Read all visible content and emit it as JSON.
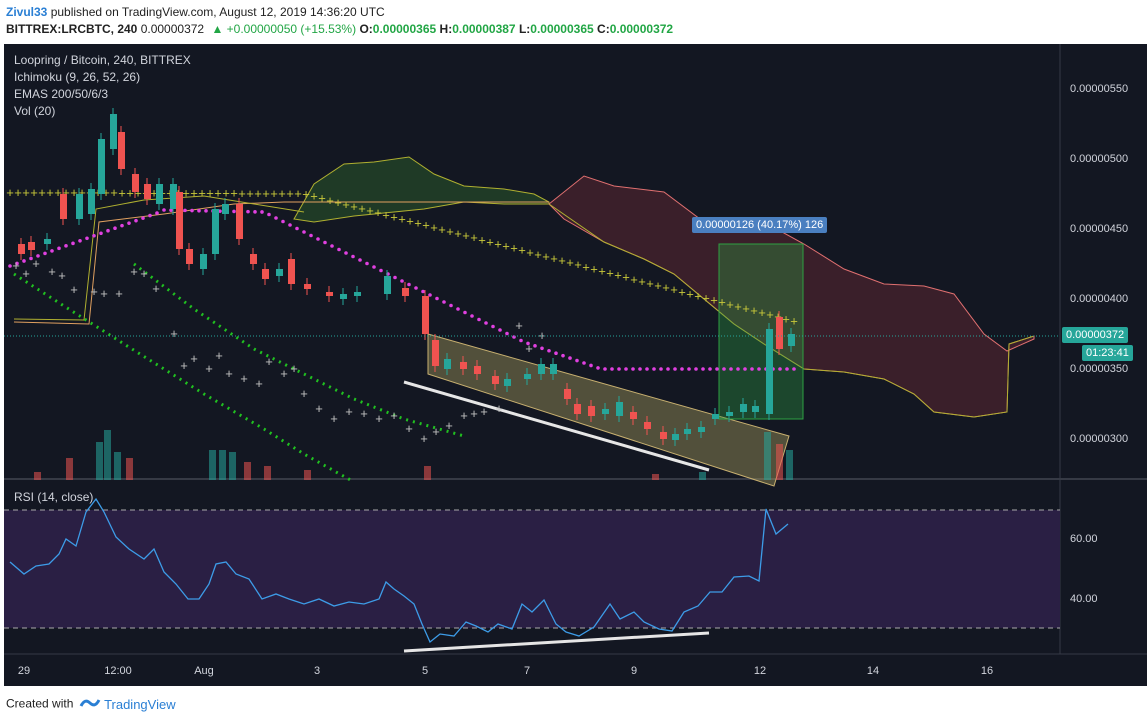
{
  "header": {
    "author": "Zivul33",
    "published_text": "published on TradingView.com, August 12, 2019 14:36:20 UTC",
    "symbol": "BITTREX:LRCBTC, 240",
    "last_price": "0.00000372",
    "change": "▲ +0.00000050 (+15.53%)",
    "o_label": "O:",
    "o_value": "0.00000365",
    "h_label": "H:",
    "h_value": "0.00000387",
    "l_label": "L:",
    "l_value": "0.00000365",
    "c_label": "C:",
    "c_value": "0.00000372"
  },
  "legend": {
    "title": "Loopring / Bitcoin, 240, BITTREX",
    "ichimoku": "Ichimoku (9, 26, 52, 26)",
    "emas": "EMAS 200/50/6/3",
    "vol": "Vol (20)",
    "rsi": "RSI (14, close)"
  },
  "price_axis": {
    "ticks": [
      "0.00000550",
      "0.00000500",
      "0.00000450",
      "0.00000400",
      "0.00000350",
      "0.00000300"
    ],
    "current_price": "0.00000372",
    "countdown": "01:23:41"
  },
  "rsi_axis": {
    "ticks": [
      "60.00",
      "40.00"
    ]
  },
  "time_axis": {
    "ticks": [
      "29",
      "12:00",
      "Aug",
      "3",
      "5",
      "7",
      "9",
      "12",
      "14",
      "16"
    ]
  },
  "measure_label": "0.00000126 (40.17%) 126",
  "colors": {
    "background": "#131722",
    "up": "#26a69a",
    "down": "#ef5350",
    "ema_yellow": "#c8c83a",
    "ema_magenta": "#e040e0",
    "sar_green": "#20c020",
    "cloud_red": "#3a1f2a",
    "rsi_line": "#3d9ce8",
    "rsi_band": "#2a1f44"
  },
  "footer": {
    "created_with": "Created with",
    "brand": "TradingView"
  }
}
